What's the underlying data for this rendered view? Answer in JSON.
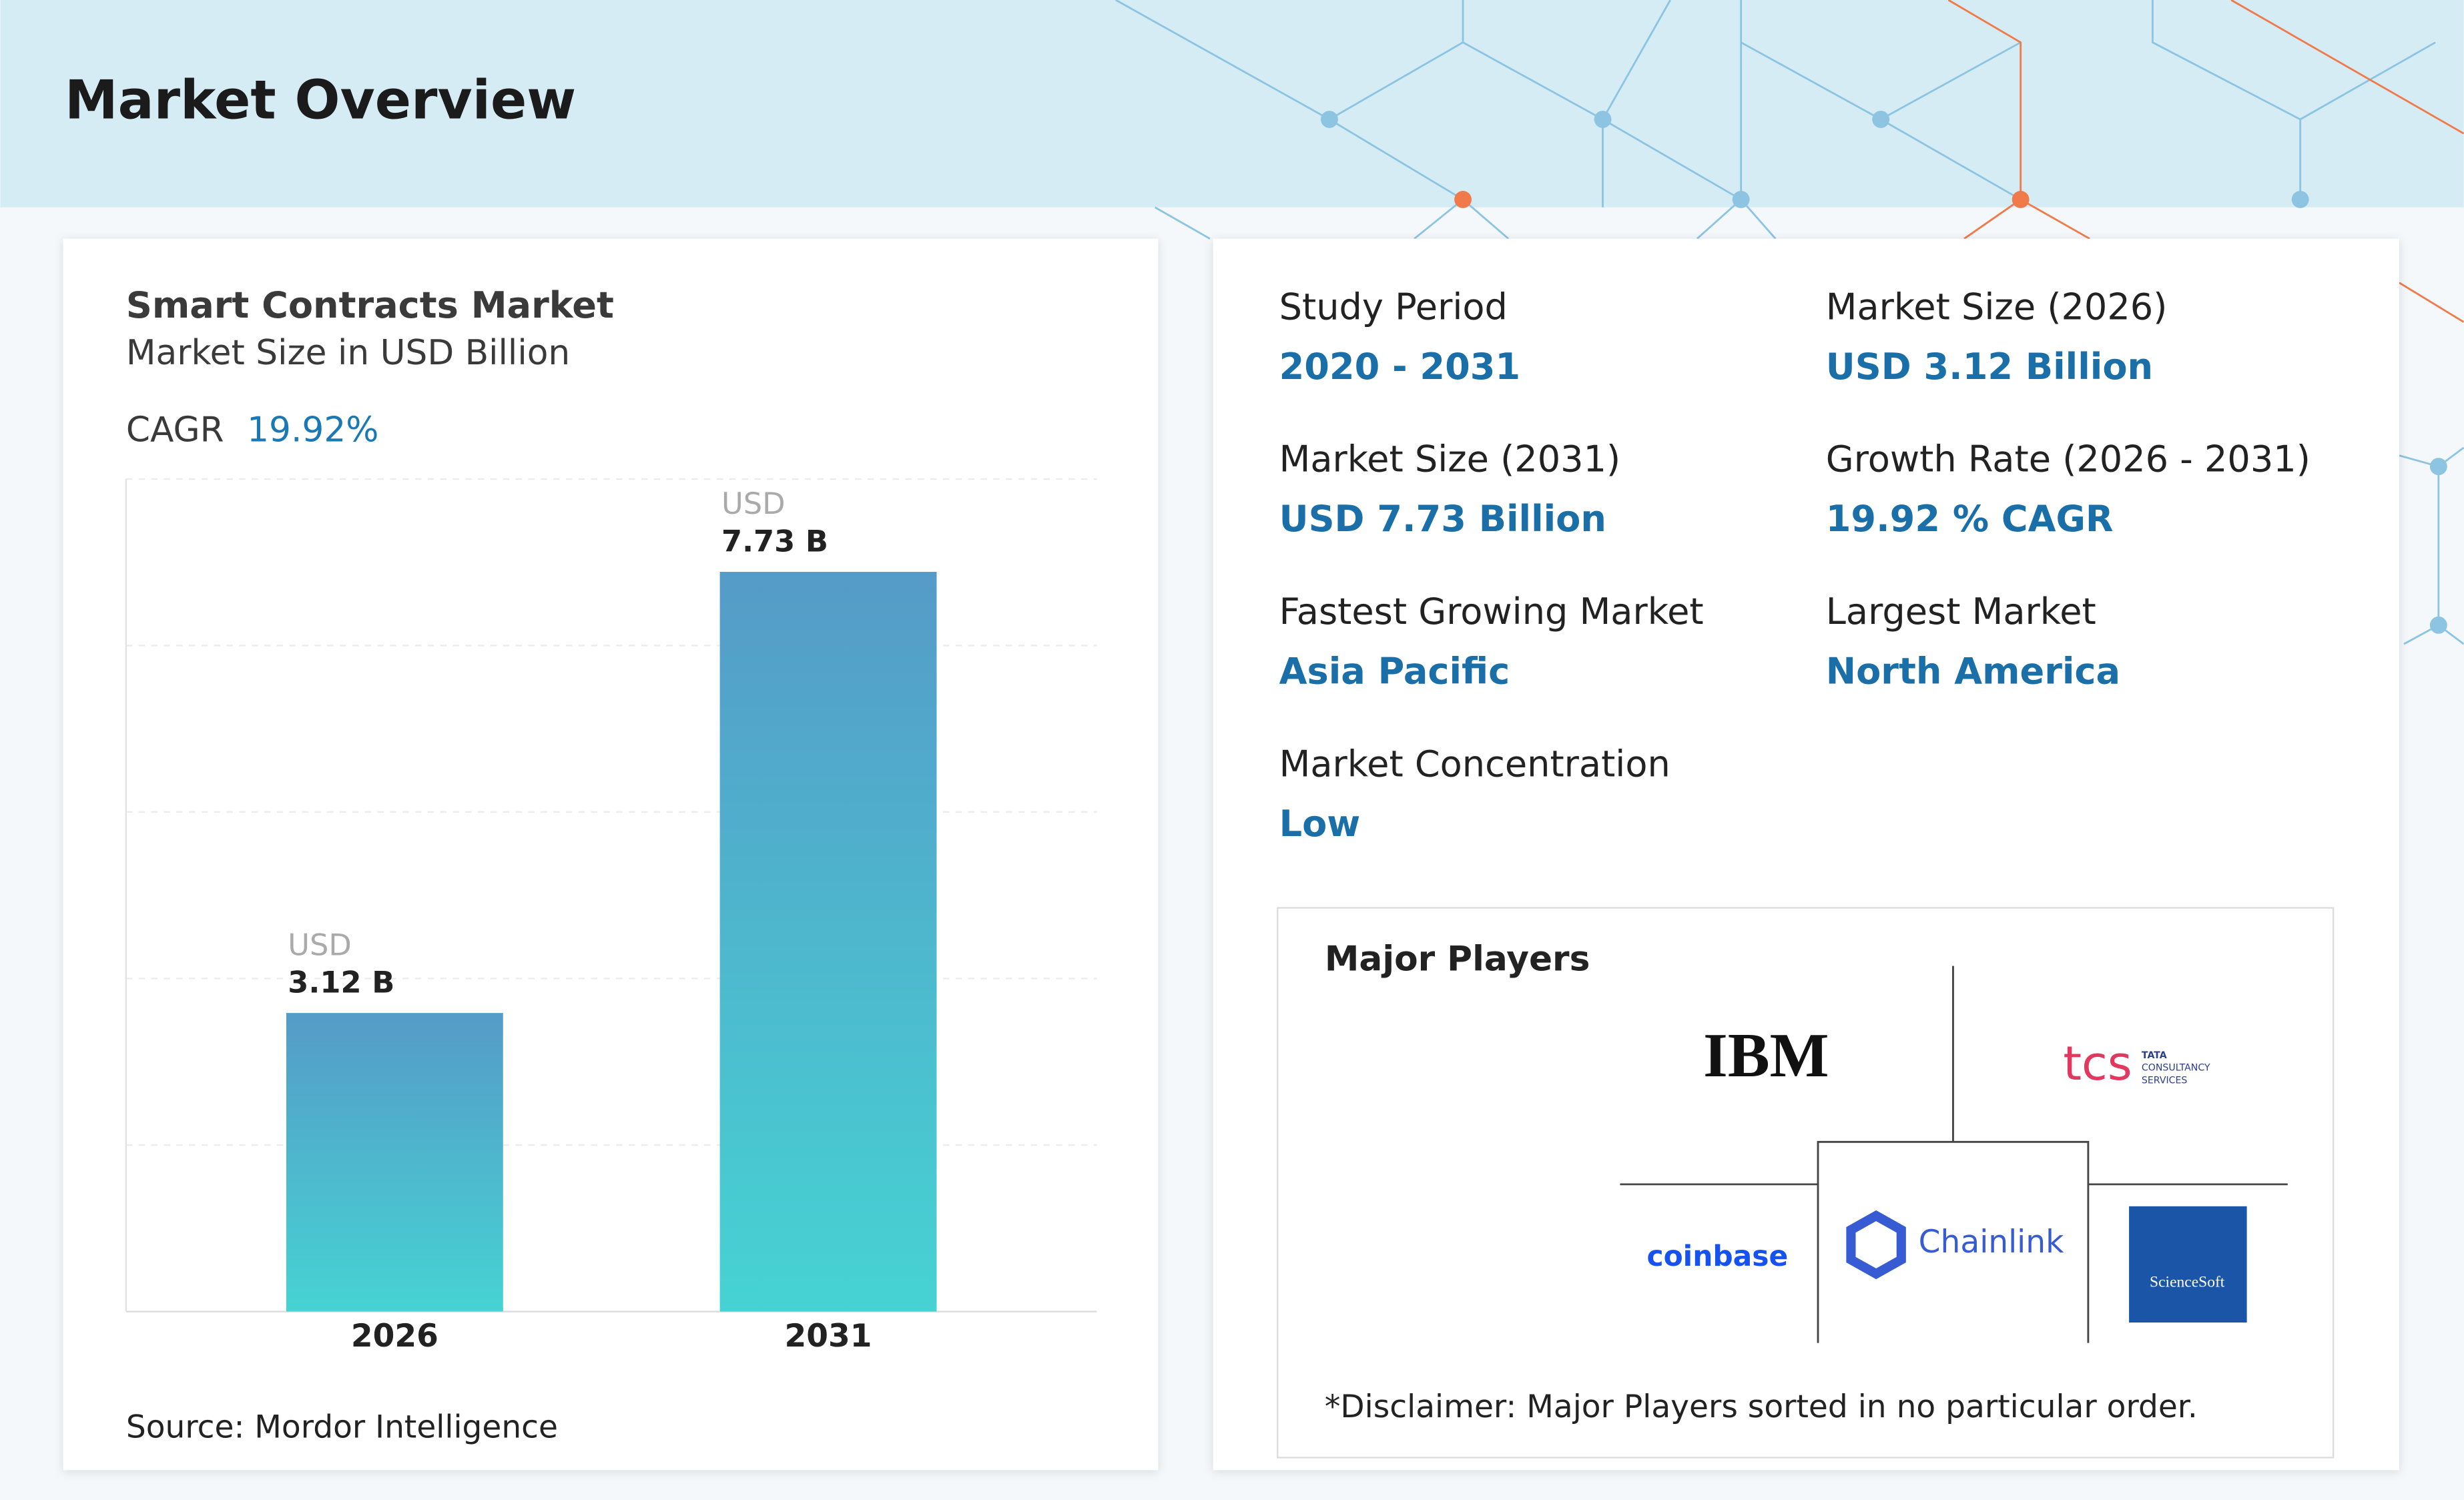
{
  "header": {
    "title": "Market Overview"
  },
  "chart_data": {
    "type": "bar",
    "title": "Smart Contracts Market",
    "subtitle": "Market Size in USD Billion",
    "cagr_label": "CAGR",
    "cagr_value": "19.92%",
    "categories": [
      "2026",
      "2031"
    ],
    "values": [
      3.12,
      7.73
    ],
    "value_labels": [
      "3.12 B",
      "7.73 B"
    ],
    "value_unit": "USD",
    "gradient": [
      "#559bc8",
      "#46d3d3"
    ],
    "ylim": [
      0,
      8.7
    ],
    "yticks": [
      0,
      1.74,
      3.48,
      5.22,
      6.96,
      8.7
    ],
    "grid": true,
    "source": "Source: Mordor Intelligence"
  },
  "stats": [
    {
      "label": "Study Period",
      "value": "2020 - 2031"
    },
    {
      "label": "Market Size (2026)",
      "value": "USD 3.12 Billion"
    },
    {
      "label": "Market Size (2031)",
      "value": "USD 7.73 Billion"
    },
    {
      "label": "Growth Rate (2026 - 2031)",
      "value": "19.92 % CAGR"
    },
    {
      "label": "Fastest Growing Market",
      "value": "Asia Pacific"
    },
    {
      "label": "Largest Market",
      "value": "North America"
    },
    {
      "label": "Market Concentration",
      "value": "Low"
    }
  ],
  "players": {
    "title": "Major Players",
    "logos": [
      "IBM",
      "tcs",
      "TATA",
      "CONSULTANCY",
      "SERVICES",
      "coinbase",
      "Chainlink",
      "ScienceSoft"
    ],
    "disclaimer": "*Disclaimer: Major Players sorted in no particular order."
  }
}
